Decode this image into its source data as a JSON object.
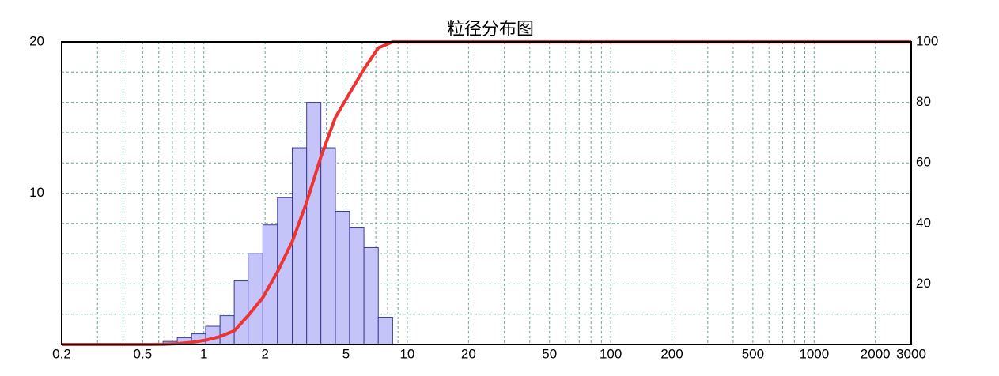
{
  "chart_data": {
    "type": "histogram",
    "title": "粒径分布图",
    "xlog": true,
    "xlim": [
      0.2,
      3000
    ],
    "xticks": [
      0.2,
      0.5,
      1,
      2,
      5,
      10,
      20,
      50,
      100,
      200,
      500,
      1000,
      2000,
      3000
    ],
    "x_minor_ticks": [
      0.3,
      0.4,
      0.6,
      0.7,
      0.8,
      0.9,
      3,
      4,
      6,
      7,
      8,
      9,
      30,
      40,
      60,
      70,
      80,
      90,
      300,
      400,
      600,
      700,
      800,
      900
    ],
    "ylim": [
      0,
      20
    ],
    "yticks": [
      10,
      20
    ],
    "y2lim": [
      0,
      100
    ],
    "y2ticks": [
      20,
      40,
      60,
      80,
      100
    ],
    "y2_minor_ticks": [
      10,
      30,
      50,
      70,
      90
    ],
    "grid": true,
    "series": [
      {
        "type": "histogram",
        "color": "#c4c4f8",
        "edge_color": "#3a3a9a",
        "bins": [
          0.54,
          0.63,
          0.74,
          0.87,
          1.02,
          1.2,
          1.41,
          1.65,
          1.95,
          2.3,
          2.72,
          3.2,
          3.76,
          4.43,
          5.2,
          6.12,
          7.2,
          8.47
        ],
        "values": [
          0.05,
          0.2,
          0.45,
          0.7,
          1.2,
          1.9,
          4.2,
          6.0,
          7.9,
          9.7,
          13.0,
          16.0,
          13.0,
          8.8,
          7.7,
          6.4,
          1.8
        ]
      },
      {
        "type": "line",
        "axis": "y2",
        "color": "#ee3333",
        "x": [
          0.2,
          0.54,
          0.63,
          0.74,
          0.87,
          1.02,
          1.2,
          1.41,
          1.65,
          1.95,
          2.3,
          2.72,
          3.2,
          3.76,
          4.43,
          5.2,
          6.12,
          7.2,
          8.47,
          3000
        ],
        "values": [
          0,
          0,
          0.05,
          0.25,
          0.7,
          1.4,
          2.6,
          4.5,
          9.5,
          15.5,
          24,
          34,
          47,
          62,
          75,
          83,
          91,
          98,
          100,
          100
        ]
      }
    ]
  }
}
